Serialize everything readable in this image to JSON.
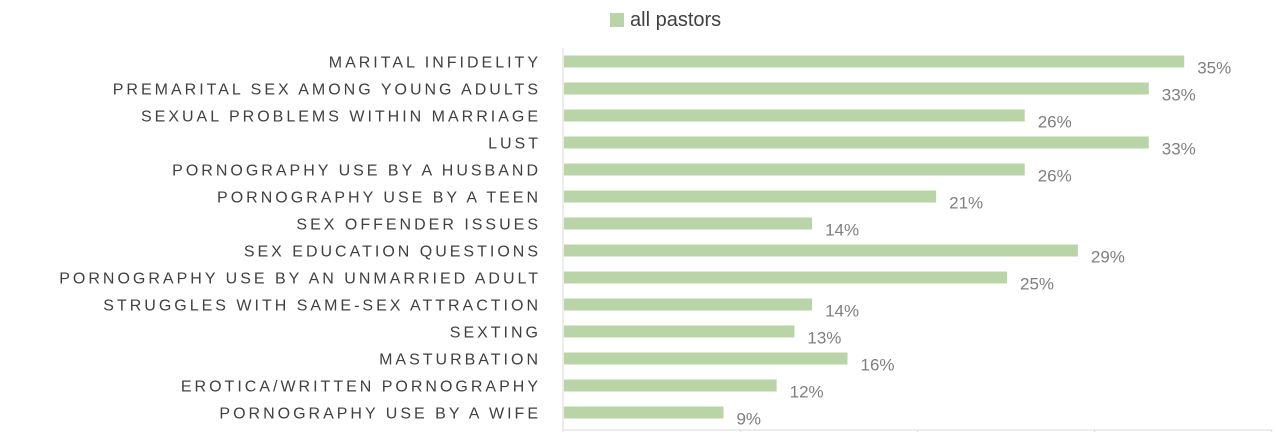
{
  "chart_data": {
    "type": "bar",
    "orientation": "horizontal",
    "categories": [
      "MARITAL INFIDELITY",
      "PREMARITAL SEX AMONG YOUNG ADULTS",
      "SEXUAL PROBLEMS WITHIN MARRIAGE",
      "LUST",
      "PORNOGRAPHY USE BY A HUSBAND",
      "PORNOGRAPHY USE BY A TEEN",
      "SEX OFFENDER ISSUES",
      "SEX EDUCATION QUESTIONS",
      "PORNOGRAPHY USE BY AN UNMARRIED ADULT",
      "STRUGGLES WITH SAME-SEX ATTRACTION",
      "SEXTING",
      "MASTURBATION",
      "EROTICA/WRITTEN PORNOGRAPHY",
      "PORNOGRAPHY USE BY A  WIFE"
    ],
    "series": [
      {
        "name": "all pastors",
        "values": [
          35,
          33,
          26,
          33,
          26,
          21,
          14,
          29,
          25,
          14,
          13,
          16,
          12,
          9
        ],
        "labels": [
          "35%",
          "33%",
          "26%",
          "33%",
          "26%",
          "21%",
          "14%",
          "29%",
          "25%",
          "14%",
          "13%",
          "16%",
          "12%",
          "9%"
        ],
        "color": "#b9d4a6"
      }
    ],
    "xlim": [
      0,
      40
    ],
    "grid": true,
    "legend_position": "top",
    "axis_color": "#d9d9d9",
    "label_color": "#404040",
    "value_label_color": "#7f7f7f"
  }
}
